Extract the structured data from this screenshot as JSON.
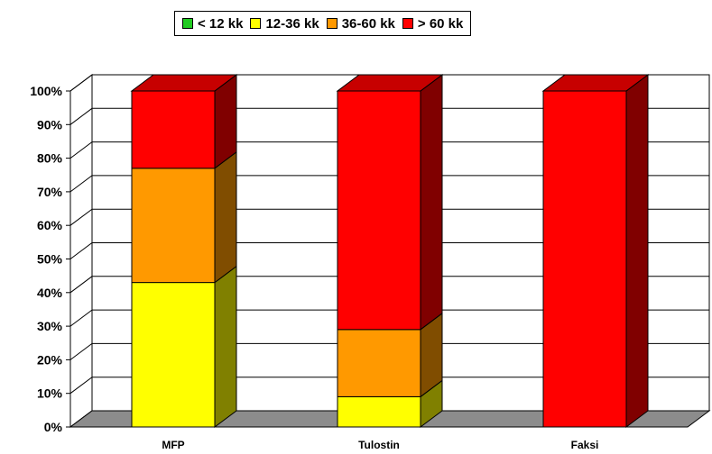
{
  "chart_data": {
    "type": "bar",
    "stacked": true,
    "percent_stacked": true,
    "three_d": true,
    "categories": [
      "MFP",
      "Tulostin",
      "Faksi"
    ],
    "series": [
      {
        "name": "< 12 kk",
        "color": "#22cc22",
        "values": [
          0,
          0,
          0
        ]
      },
      {
        "name": "12-36 kk",
        "color": "#ffff00",
        "values": [
          43,
          9,
          0
        ]
      },
      {
        "name": "36-60 kk",
        "color": "#ff9900",
        "values": [
          34,
          20,
          0
        ]
      },
      {
        "name": "> 60 kk",
        "color": "#ff0000",
        "values": [
          23,
          71,
          100
        ]
      }
    ],
    "y_ticks": [
      "0%",
      "10%",
      "20%",
      "30%",
      "40%",
      "50%",
      "60%",
      "70%",
      "80%",
      "90%",
      "100%"
    ],
    "ylim": [
      0,
      100
    ],
    "grid": true,
    "legend_position": "top-center"
  }
}
